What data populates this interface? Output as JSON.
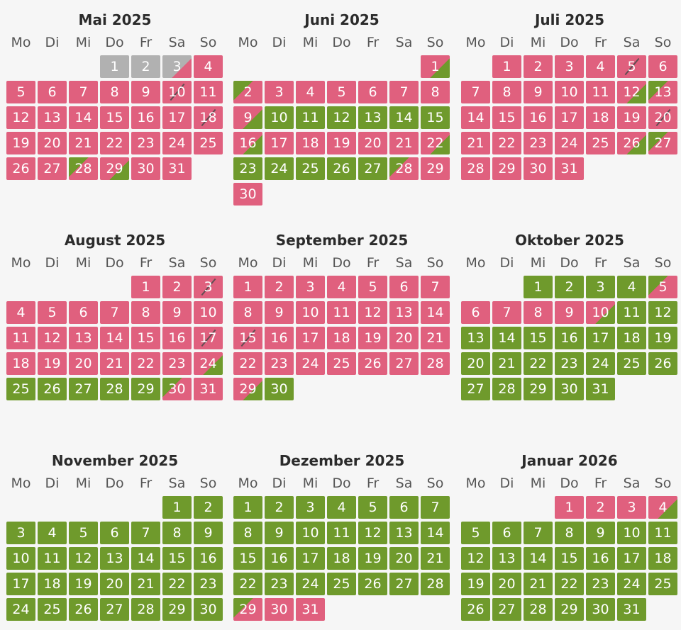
{
  "weekdays": [
    "Mo",
    "Di",
    "Mi",
    "Do",
    "Fr",
    "Sa",
    "So"
  ],
  "legend_colors": {
    "booked": "#e0607e",
    "available": "#6f9a2c",
    "past": "#b1b1b1",
    "changeover_line": "#4a4a4a"
  },
  "months": [
    {
      "title": "Mai 2025",
      "first_weekday_offset": 3,
      "states": [
        "x",
        "x",
        "xr",
        "r",
        "r",
        "r",
        "r",
        "r",
        "r",
        "r/",
        "r",
        "r",
        "r",
        "r",
        "r",
        "r",
        "r",
        "r/",
        "r",
        "r",
        "r",
        "r",
        "r",
        "r",
        "r",
        "r",
        "r",
        "gr",
        "rg",
        "r",
        "r"
      ]
    },
    {
      "title": "Juni 2025",
      "first_weekday_offset": 6,
      "states": [
        "rg",
        "gr",
        "r",
        "r",
        "r",
        "r",
        "r",
        "r",
        "rg",
        "g",
        "g",
        "g",
        "g",
        "g",
        "g",
        "rg",
        "r",
        "r",
        "r",
        "r",
        "r",
        "rg",
        "g",
        "g",
        "g",
        "g",
        "g",
        "gr",
        "r",
        "r"
      ]
    },
    {
      "title": "Juli 2025",
      "first_weekday_offset": 1,
      "states": [
        "r",
        "r",
        "r",
        "r",
        "r/",
        "r",
        "r",
        "r",
        "r",
        "r",
        "r",
        "rg",
        "gr",
        "r",
        "r",
        "r",
        "r",
        "r",
        "r",
        "r/",
        "r",
        "r",
        "r",
        "r",
        "r",
        "rg",
        "gr",
        "r",
        "r",
        "r",
        "r"
      ]
    },
    {
      "title": "August 2025",
      "first_weekday_offset": 4,
      "states": [
        "r",
        "r",
        "r/",
        "r",
        "r",
        "r",
        "r",
        "r",
        "r",
        "r",
        "r",
        "r",
        "r",
        "r",
        "r",
        "r",
        "r/",
        "r",
        "r",
        "r",
        "r",
        "r",
        "r",
        "rg",
        "g",
        "g",
        "g",
        "g",
        "g",
        "gr",
        "r"
      ]
    },
    {
      "title": "September 2025",
      "first_weekday_offset": 0,
      "states": [
        "r",
        "r",
        "r",
        "r",
        "r",
        "r",
        "r",
        "r",
        "r",
        "r",
        "r",
        "r",
        "r",
        "r",
        "r/",
        "r",
        "r",
        "r",
        "r",
        "r",
        "r",
        "r",
        "r",
        "r",
        "r",
        "r",
        "r",
        "r",
        "rg",
        "g"
      ]
    },
    {
      "title": "Oktober 2025",
      "first_weekday_offset": 2,
      "states": [
        "g",
        "g",
        "g",
        "g",
        "gr",
        "r",
        "r",
        "r",
        "r",
        "rg",
        "g",
        "g",
        "g",
        "g",
        "g",
        "g",
        "g",
        "g",
        "g",
        "g",
        "g",
        "g",
        "g",
        "g",
        "g",
        "g",
        "g",
        "g",
        "g",
        "g",
        "g"
      ]
    },
    {
      "title": "November 2025",
      "first_weekday_offset": 5,
      "states": [
        "g",
        "g",
        "g",
        "g",
        "g",
        "g",
        "g",
        "g",
        "g",
        "g",
        "g",
        "g",
        "g",
        "g",
        "g",
        "g",
        "g",
        "g",
        "g",
        "g",
        "g",
        "g",
        "g",
        "g",
        "g",
        "g",
        "g",
        "g",
        "g",
        "g"
      ]
    },
    {
      "title": "Dezember 2025",
      "first_weekday_offset": 0,
      "states": [
        "g",
        "g",
        "g",
        "g",
        "g",
        "g",
        "g",
        "g",
        "g",
        "g",
        "g",
        "g",
        "g",
        "g",
        "g",
        "g",
        "g",
        "g",
        "g",
        "g",
        "g",
        "g",
        "g",
        "g",
        "g",
        "g",
        "g",
        "g",
        "gr",
        "r",
        "r"
      ]
    },
    {
      "title": "Januar 2026",
      "first_weekday_offset": 3,
      "states": [
        "r",
        "r",
        "r",
        "rg",
        "g",
        "g",
        "g",
        "g",
        "g",
        "g",
        "g",
        "g",
        "g",
        "g",
        "g",
        "g",
        "g",
        "g",
        "g",
        "g",
        "g",
        "g",
        "g",
        "g",
        "g",
        "g",
        "g",
        "g",
        "g",
        "g",
        "g"
      ]
    }
  ]
}
